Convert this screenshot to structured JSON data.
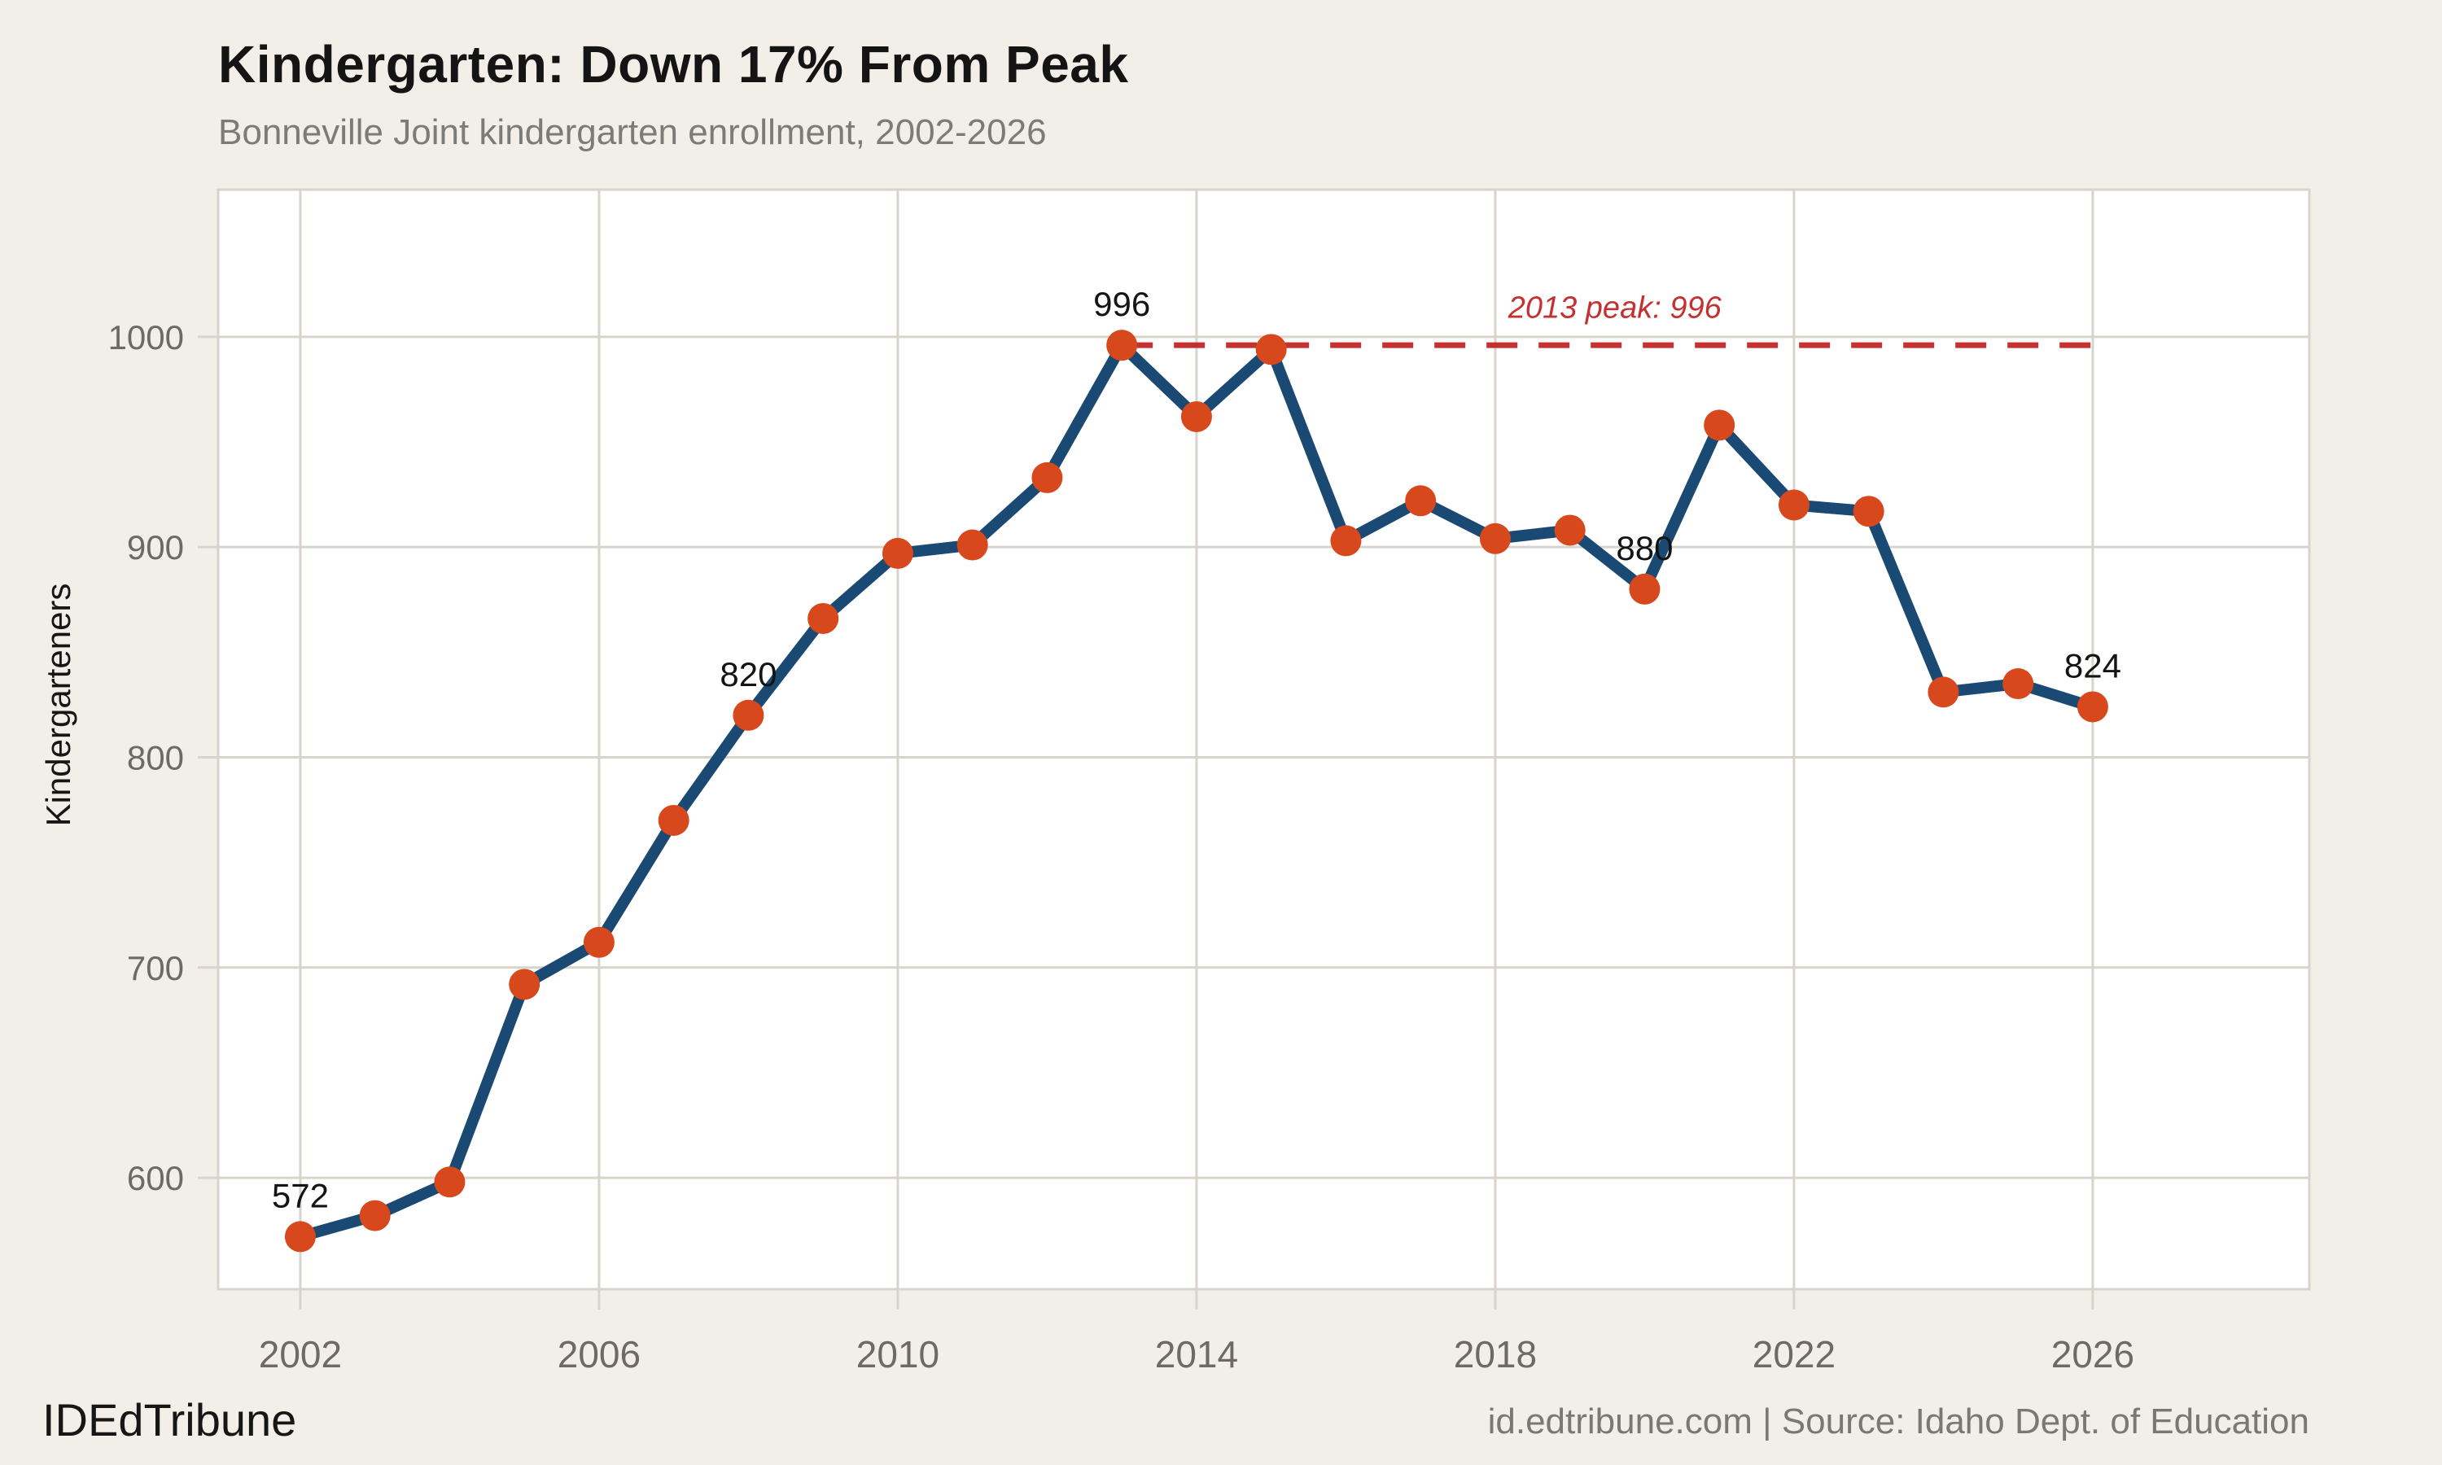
{
  "header": {
    "title": "Kindergarten: Down 17% From Peak",
    "subtitle": "Bonneville Joint kindergarten enrollment, 2002-2026"
  },
  "footer": {
    "left": "IDEdTribune",
    "right": "id.edtribune.com | Source: Idaho Dept. of Education"
  },
  "colors": {
    "background": "#f2efe8",
    "plot_background": "#ffffff",
    "grid": "#d9d4cb",
    "line": "#1a4a73",
    "point": "#d8481d",
    "peak_red": "#c43131",
    "tick_text": "#6e6a63",
    "label_text": "#141414"
  },
  "chart_data": {
    "type": "line",
    "title": "Kindergarten: Down 17% From Peak",
    "subtitle": "Bonneville Joint kindergarten enrollment, 2002-2026",
    "xlabel": "",
    "ylabel": "Kindergarteners",
    "x": [
      2002,
      2003,
      2004,
      2005,
      2006,
      2007,
      2008,
      2009,
      2010,
      2011,
      2012,
      2013,
      2014,
      2015,
      2016,
      2017,
      2018,
      2019,
      2020,
      2021,
      2022,
      2023,
      2024,
      2025,
      2026
    ],
    "values": [
      572,
      582,
      598,
      692,
      712,
      770,
      820,
      866,
      897,
      901,
      933,
      996,
      962,
      994,
      903,
      922,
      904,
      908,
      880,
      958,
      920,
      917,
      831,
      835,
      824
    ],
    "series_name": "Kindergarten enrollment",
    "xticks": [
      2002,
      2006,
      2010,
      2014,
      2018,
      2022,
      2026
    ],
    "yticks": [
      600,
      700,
      800,
      900,
      1000
    ],
    "xlim": [
      2000.9,
      2028.9
    ],
    "ylim": [
      547,
      1070
    ],
    "grid": true,
    "legend": false,
    "point_labels": [
      {
        "year": 2002,
        "label": "572"
      },
      {
        "year": 2008,
        "label": "820"
      },
      {
        "year": 2013,
        "label": "996"
      },
      {
        "year": 2020,
        "label": "880"
      },
      {
        "year": 2026,
        "label": "824"
      }
    ],
    "peak_annotation": {
      "label": "2013 peak: 996",
      "value": 996,
      "from_year": 2013,
      "to_year": 2026,
      "label_year": 2019.6,
      "label_value": 1009
    }
  }
}
